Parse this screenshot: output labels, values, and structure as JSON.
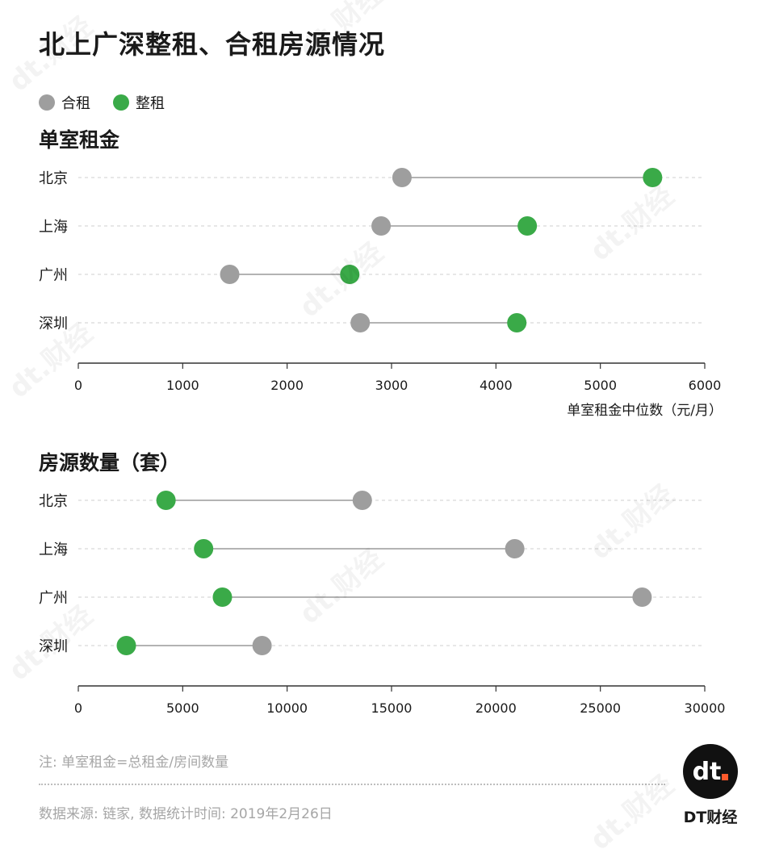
{
  "title": "北上广深整租、合租房源情况",
  "legend": [
    {
      "label": "合租",
      "color": "#9e9e9e"
    },
    {
      "label": "整租",
      "color": "#3aaa48"
    }
  ],
  "note": "注: 单室租金=总租金/房间数量",
  "source": "数据来源: 链家, 数据统计时间: 2019年2月26日",
  "logo": {
    "mark": "dt",
    "text": "DT财经"
  },
  "watermark": "dt.财经",
  "chart_data": [
    {
      "type": "dumbbell",
      "title": "单室租金",
      "xlabel": "单室租金中位数（元/月）",
      "xlim": [
        0,
        6000
      ],
      "xticks": [
        0,
        1000,
        2000,
        3000,
        4000,
        5000,
        6000
      ],
      "categories": [
        "北京",
        "上海",
        "广州",
        "深圳"
      ],
      "series": [
        {
          "name": "合租",
          "color": "#9e9e9e",
          "values": [
            3100,
            2900,
            1450,
            2700
          ]
        },
        {
          "name": "整租",
          "color": "#3aaa48",
          "values": [
            5500,
            4300,
            2600,
            4200
          ]
        }
      ]
    },
    {
      "type": "dumbbell",
      "title": "房源数量（套）",
      "xlabel": "",
      "xlim": [
        0,
        30000
      ],
      "xticks": [
        0,
        5000,
        10000,
        15000,
        20000,
        25000,
        30000
      ],
      "categories": [
        "北京",
        "上海",
        "广州",
        "深圳"
      ],
      "series": [
        {
          "name": "合租",
          "color": "#9e9e9e",
          "values": [
            13600,
            20900,
            27000,
            8800
          ]
        },
        {
          "name": "整租",
          "color": "#3aaa48",
          "values": [
            4200,
            6000,
            6900,
            2300
          ]
        }
      ]
    }
  ]
}
